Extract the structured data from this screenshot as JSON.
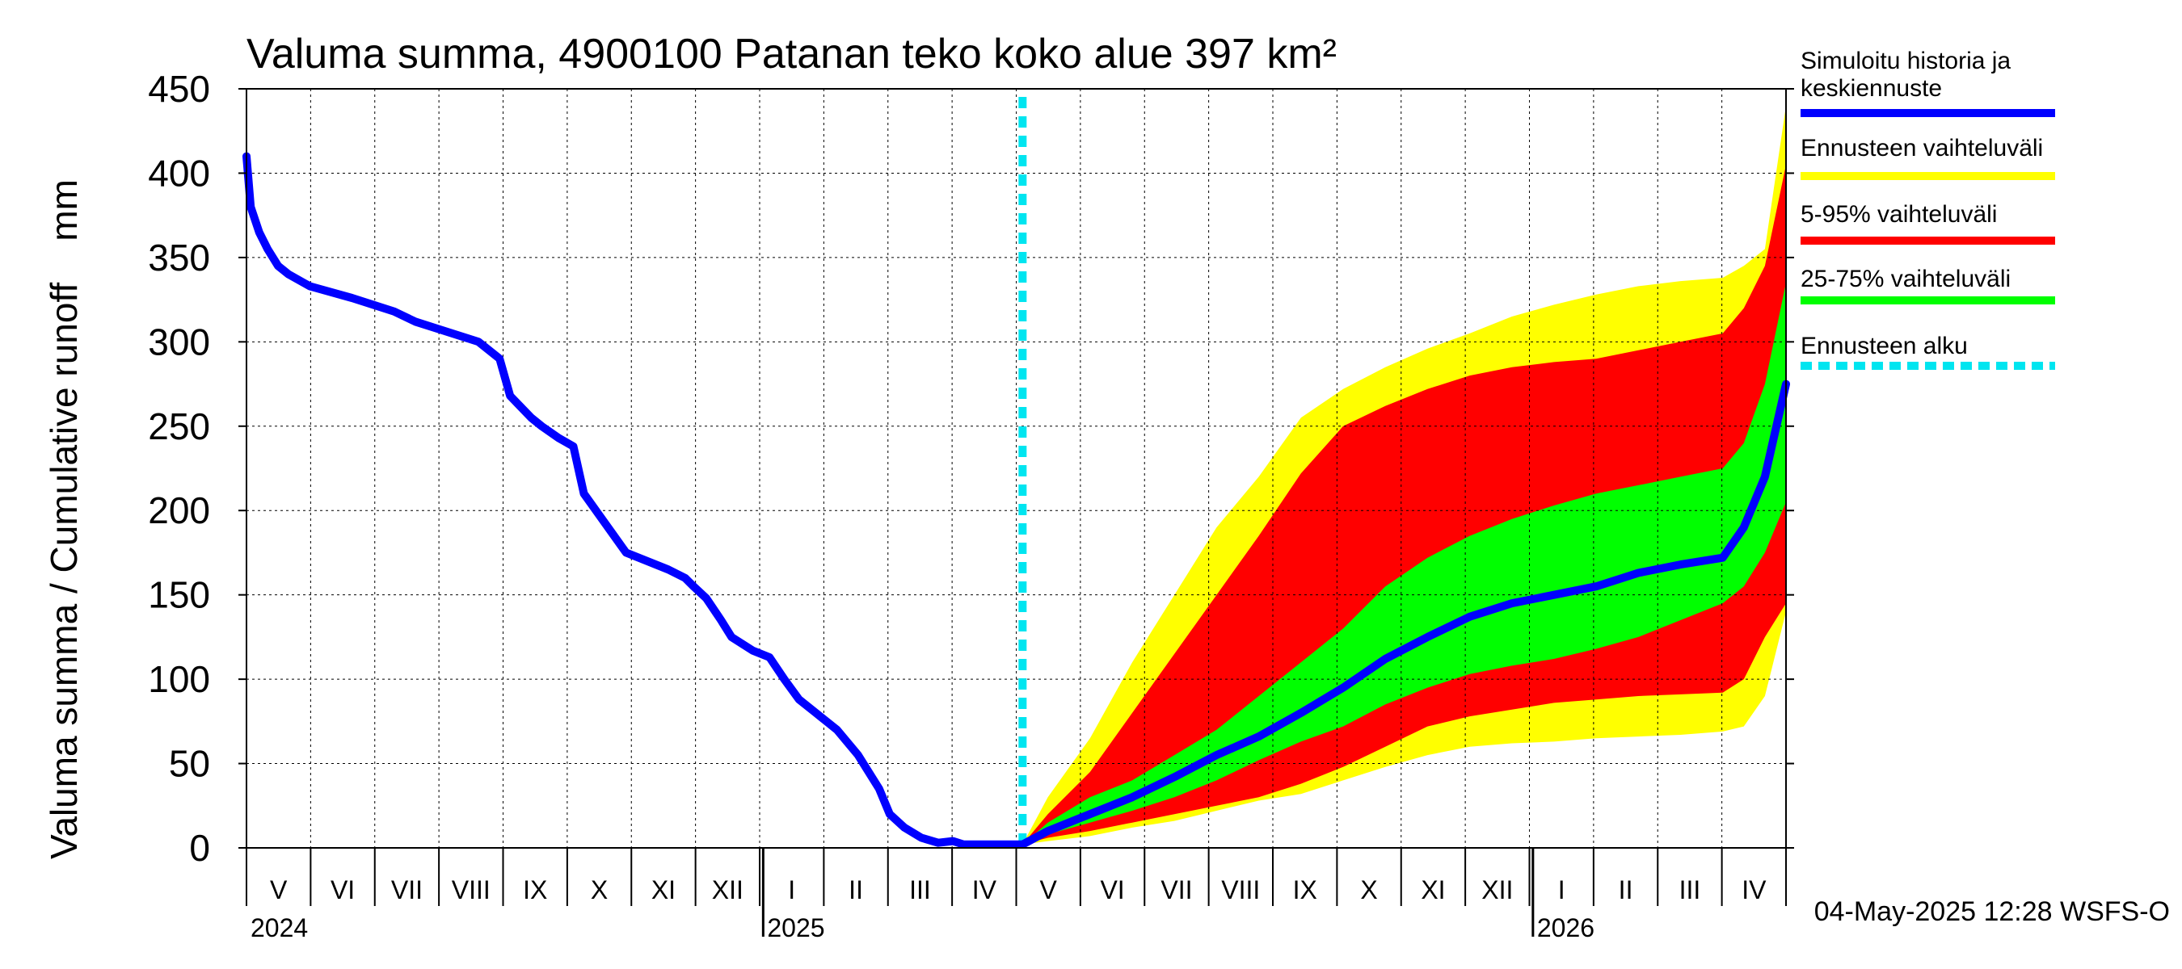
{
  "chart_data": {
    "type": "area",
    "title": "Valuma summa, 4900100 Patanan teko koko alue 397 km²",
    "ylabel": "Valuma summa / Cumulative runoff    mm",
    "ylim": [
      0,
      450
    ],
    "yticks": [
      0,
      50,
      100,
      150,
      200,
      250,
      300,
      350,
      400,
      450
    ],
    "x_range_days": [
      0,
      730
    ],
    "grid": true,
    "month_labels": [
      "V",
      "VI",
      "VII",
      "VIII",
      "IX",
      "X",
      "XI",
      "XII",
      "I",
      "II",
      "III",
      "IV",
      "V",
      "VI",
      "VII",
      "VIII",
      "IX",
      "X",
      "XI",
      "XII",
      "I",
      "II",
      "III",
      "IV"
    ],
    "year_labels": [
      {
        "label": "2024",
        "day": 0
      },
      {
        "label": "2025",
        "day": 245
      },
      {
        "label": "2026",
        "day": 610
      }
    ],
    "forecast_start_day": 368,
    "history": {
      "name": "Simuloitu historia ja keskiennuste",
      "days": [
        0,
        2,
        6,
        10,
        15,
        20,
        30,
        50,
        70,
        80,
        90,
        110,
        120,
        125,
        135,
        140,
        148,
        155,
        160,
        180,
        200,
        208,
        212,
        218,
        225,
        230,
        240,
        248,
        255,
        262,
        270,
        280,
        290,
        300,
        305,
        312,
        320,
        328,
        335,
        340,
        350,
        360,
        365,
        368
      ],
      "values": [
        410,
        380,
        365,
        355,
        345,
        340,
        333,
        326,
        318,
        312,
        308,
        300,
        290,
        268,
        255,
        250,
        243,
        238,
        210,
        175,
        165,
        160,
        155,
        148,
        135,
        125,
        117,
        113,
        100,
        88,
        80,
        70,
        55,
        35,
        20,
        12,
        6,
        3,
        4,
        2,
        2,
        2,
        2,
        2
      ]
    },
    "median_forecast": {
      "name": "Simuloitu historia ja keskiennuste",
      "days": [
        368,
        380,
        400,
        420,
        440,
        460,
        480,
        500,
        520,
        540,
        560,
        580,
        600,
        620,
        640,
        660,
        680,
        700,
        710,
        720,
        730
      ],
      "values": [
        2,
        10,
        20,
        30,
        42,
        55,
        66,
        80,
        95,
        112,
        125,
        137,
        145,
        150,
        155,
        163,
        168,
        172,
        190,
        220,
        275
      ]
    },
    "bands": [
      {
        "name": "Ennusteen vaihteluväli",
        "color": "#ffff00",
        "days": [
          368,
          380,
          400,
          420,
          440,
          460,
          480,
          500,
          520,
          540,
          560,
          580,
          600,
          620,
          640,
          660,
          680,
          700,
          710,
          720,
          730
        ],
        "lower": [
          2,
          4,
          7,
          12,
          16,
          22,
          28,
          32,
          40,
          48,
          55,
          60,
          62,
          63,
          65,
          66,
          67,
          69,
          72,
          90,
          140
        ],
        "upper": [
          2,
          30,
          65,
          110,
          150,
          190,
          220,
          255,
          272,
          285,
          296,
          305,
          315,
          322,
          328,
          333,
          336,
          338,
          345,
          355,
          440
        ]
      },
      {
        "name": "5-95% vaihteluväli",
        "color": "#ff0000",
        "days": [
          368,
          380,
          400,
          420,
          440,
          460,
          480,
          500,
          520,
          540,
          560,
          580,
          600,
          620,
          640,
          660,
          680,
          700,
          710,
          720,
          730
        ],
        "lower": [
          2,
          6,
          10,
          15,
          20,
          25,
          30,
          38,
          48,
          60,
          72,
          78,
          82,
          86,
          88,
          90,
          91,
          92,
          100,
          125,
          145
        ],
        "upper": [
          2,
          20,
          45,
          80,
          115,
          150,
          185,
          222,
          250,
          262,
          272,
          280,
          285,
          288,
          290,
          295,
          300,
          305,
          320,
          345,
          405
        ]
      },
      {
        "name": "25-75% vaihteluväli",
        "color": "#00ff00",
        "days": [
          368,
          380,
          400,
          420,
          440,
          460,
          480,
          500,
          520,
          540,
          560,
          580,
          600,
          620,
          640,
          660,
          680,
          700,
          710,
          720,
          730
        ],
        "lower": [
          2,
          8,
          15,
          22,
          30,
          40,
          52,
          63,
          72,
          85,
          95,
          103,
          108,
          112,
          118,
          125,
          135,
          145,
          155,
          175,
          205
        ],
        "upper": [
          2,
          15,
          30,
          40,
          55,
          70,
          90,
          110,
          130,
          155,
          172,
          185,
          195,
          203,
          210,
          215,
          220,
          225,
          240,
          275,
          335
        ]
      }
    ],
    "legend": [
      {
        "label": "Simuloitu historia ja keskiennuste",
        "color": "#0000ff",
        "style": "solid"
      },
      {
        "label": "Ennusteen vaihteluväli",
        "color": "#ffff00",
        "style": "solid"
      },
      {
        "label": "5-95% vaihteluväli",
        "color": "#ff0000",
        "style": "solid"
      },
      {
        "label": "25-75% vaihteluväli",
        "color": "#00ff00",
        "style": "solid"
      },
      {
        "label": "Ennusteen alku",
        "color": "#00e5f0",
        "style": "dashed"
      }
    ],
    "legend_position": "right",
    "footer": "04-May-2025 12:28 WSFS-O"
  }
}
